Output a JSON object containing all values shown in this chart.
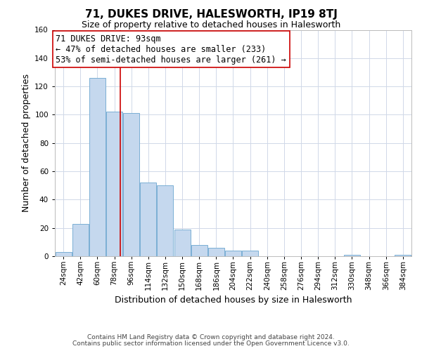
{
  "title": "71, DUKES DRIVE, HALESWORTH, IP19 8TJ",
  "subtitle": "Size of property relative to detached houses in Halesworth",
  "xlabel": "Distribution of detached houses by size in Halesworth",
  "ylabel": "Number of detached properties",
  "footer_lines": [
    "Contains HM Land Registry data © Crown copyright and database right 2024.",
    "Contains public sector information licensed under the Open Government Licence v3.0."
  ],
  "bin_labels": [
    "24sqm",
    "42sqm",
    "60sqm",
    "78sqm",
    "96sqm",
    "114sqm",
    "132sqm",
    "150sqm",
    "168sqm",
    "186sqm",
    "204sqm",
    "222sqm",
    "240sqm",
    "258sqm",
    "276sqm",
    "294sqm",
    "312sqm",
    "330sqm",
    "348sqm",
    "366sqm",
    "384sqm"
  ],
  "bin_edges": [
    24,
    42,
    60,
    78,
    96,
    114,
    132,
    150,
    168,
    186,
    204,
    222,
    240,
    258,
    276,
    294,
    312,
    330,
    348,
    366,
    384
  ],
  "bar_heights": [
    3,
    23,
    126,
    102,
    101,
    52,
    50,
    19,
    8,
    6,
    4,
    4,
    0,
    0,
    0,
    0,
    0,
    1,
    0,
    0,
    1
  ],
  "bar_color": "#c5d8ee",
  "bar_edge_color": "#7aafd4",
  "vline_x": 93,
  "vline_color": "#cc0000",
  "annotation_line1": "71 DUKES DRIVE: 93sqm",
  "annotation_line2": "← 47% of detached houses are smaller (233)",
  "annotation_line3": "53% of semi-detached houses are larger (261) →",
  "annotation_box_edgecolor": "#cc0000",
  "annotation_box_facecolor": "#ffffff",
  "ylim": [
    0,
    160
  ],
  "yticks": [
    0,
    20,
    40,
    60,
    80,
    100,
    120,
    140,
    160
  ],
  "grid_color": "#d0d8e8",
  "background_color": "#ffffff",
  "title_fontsize": 11,
  "subtitle_fontsize": 9,
  "xlabel_fontsize": 9,
  "ylabel_fontsize": 9,
  "tick_fontsize": 7.5,
  "annotation_fontsize": 8.5,
  "footer_fontsize": 6.5
}
